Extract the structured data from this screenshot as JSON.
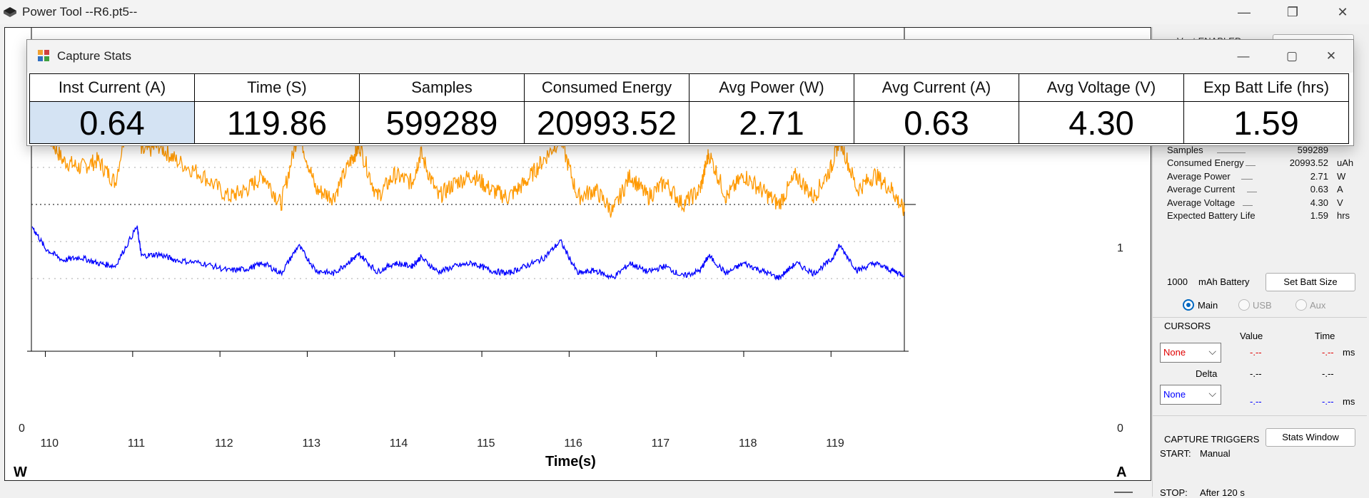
{
  "window": {
    "title": "Power Tool --R6.pt5--",
    "minimize": "—",
    "maximize": "❐",
    "close": "✕"
  },
  "dialog": {
    "title": "Capture Stats",
    "minimize": "—",
    "maximize": "▢",
    "close": "✕",
    "headers": [
      "Inst Current (A)",
      "Time (S)",
      "Samples",
      "Consumed Energy",
      "Avg Power (W)",
      "Avg Current (A)",
      "Avg Voltage (V)",
      "Exp Batt Life (hrs)"
    ],
    "values": [
      "0.64",
      "119.86",
      "599289",
      "20993.52",
      "2.71",
      "0.63",
      "4.30",
      "1.59"
    ]
  },
  "chart": {
    "x_title": "Time(s)",
    "left_unit": "W",
    "right_unit": "A",
    "left_tick_zero": "0",
    "right_tick_zero": "0",
    "right_tick_one": "1",
    "x_ticks": [
      "110",
      "111",
      "112",
      "113",
      "114",
      "115",
      "116",
      "117",
      "118",
      "119"
    ]
  },
  "chart_data": {
    "type": "line",
    "xlabel": "Time(s)",
    "x_range": [
      109.84,
      119.84
    ],
    "series": [
      {
        "name": "W",
        "color": "#ff9900",
        "x": [
          109.85,
          110.0,
          110.2,
          110.4,
          110.6,
          110.8,
          111.05,
          111.1,
          111.3,
          111.5,
          111.8,
          112.1,
          112.3,
          112.5,
          112.7,
          112.9,
          113.1,
          113.3,
          113.5,
          113.6,
          113.8,
          114.0,
          114.2,
          114.3,
          114.5,
          114.7,
          114.9,
          115.1,
          115.3,
          115.5,
          115.7,
          115.9,
          116.1,
          116.3,
          116.5,
          116.7,
          116.9,
          117.1,
          117.3,
          117.5,
          117.6,
          117.8,
          118.0,
          118.2,
          118.4,
          118.6,
          118.8,
          119.0,
          119.1,
          119.3,
          119.5,
          119.7,
          119.84
        ],
        "y": [
          1.7,
          1.5,
          1.3,
          1.25,
          1.3,
          1.15,
          1.9,
          1.35,
          1.4,
          1.3,
          1.2,
          1.05,
          1.1,
          1.2,
          1.0,
          1.5,
          1.1,
          1.05,
          1.3,
          1.4,
          1.05,
          1.2,
          1.15,
          1.35,
          1.05,
          1.15,
          1.2,
          1.1,
          1.05,
          1.15,
          1.3,
          1.45,
          1.05,
          1.1,
          0.95,
          1.2,
          1.05,
          1.15,
          1.0,
          1.1,
          1.35,
          1.05,
          1.2,
          1.1,
          1.0,
          1.2,
          1.05,
          1.25,
          1.45,
          1.1,
          1.2,
          1.1,
          0.95
        ]
      },
      {
        "name": "A",
        "color": "#0000ff",
        "x": [
          109.85,
          110.0,
          110.2,
          110.4,
          110.6,
          110.8,
          111.05,
          111.1,
          111.3,
          111.5,
          111.8,
          112.1,
          112.3,
          112.5,
          112.7,
          112.9,
          113.1,
          113.3,
          113.5,
          113.6,
          113.8,
          114.0,
          114.2,
          114.3,
          114.5,
          114.7,
          114.9,
          115.1,
          115.3,
          115.5,
          115.7,
          115.9,
          116.1,
          116.3,
          116.5,
          116.7,
          116.9,
          117.1,
          117.3,
          117.5,
          117.6,
          117.8,
          118.0,
          118.2,
          118.4,
          118.6,
          118.8,
          119.0,
          119.1,
          119.3,
          119.5,
          119.7,
          119.84
        ],
        "y": [
          0.85,
          0.7,
          0.62,
          0.64,
          0.6,
          0.58,
          0.85,
          0.65,
          0.66,
          0.62,
          0.6,
          0.55,
          0.56,
          0.6,
          0.53,
          0.72,
          0.55,
          0.53,
          0.62,
          0.66,
          0.54,
          0.6,
          0.58,
          0.64,
          0.54,
          0.58,
          0.6,
          0.55,
          0.53,
          0.58,
          0.63,
          0.75,
          0.53,
          0.55,
          0.5,
          0.6,
          0.54,
          0.58,
          0.51,
          0.55,
          0.65,
          0.53,
          0.6,
          0.55,
          0.5,
          0.6,
          0.53,
          0.62,
          0.72,
          0.55,
          0.6,
          0.55,
          0.52
        ]
      }
    ]
  },
  "panel": {
    "top_label": "Vout ENABLED",
    "stats": [
      {
        "label": "Time",
        "value": "119.86",
        "unit": "s"
      },
      {
        "label": "Samples",
        "value": "599289",
        "unit": ""
      },
      {
        "label": "Consumed Energy",
        "value": "20993.52",
        "unit": "uAh"
      },
      {
        "label": "Average Power",
        "value": "2.71",
        "unit": "W"
      },
      {
        "label": "Average Current",
        "value": "0.63",
        "unit": "A"
      },
      {
        "label": "Average Voltage",
        "value": "4.30",
        "unit": "V"
      },
      {
        "label": "Expected Battery Life",
        "value": "1.59",
        "unit": "hrs"
      }
    ],
    "battery_value": "1000",
    "battery_label": "mAh Battery",
    "set_batt_button": "Set Batt Size",
    "radios": [
      "Main",
      "USB",
      "Aux"
    ],
    "cursors": {
      "title": "CURSORS",
      "value_header": "Value",
      "time_header": "Time",
      "select1": "None",
      "v1": "-.--",
      "t1": "-.--",
      "unit1": "ms",
      "delta_label": "Delta",
      "dv": "-.--",
      "dt": "-.--",
      "select2": "None",
      "v2": "-.--",
      "t2": "-.--",
      "unit2": "ms"
    },
    "triggers": {
      "title": "CAPTURE TRIGGERS",
      "stats_button": "Stats Window",
      "start_label": "START:",
      "start_value": "Manual",
      "stop_label": "STOP:",
      "stop_value": "After 120 s"
    }
  }
}
